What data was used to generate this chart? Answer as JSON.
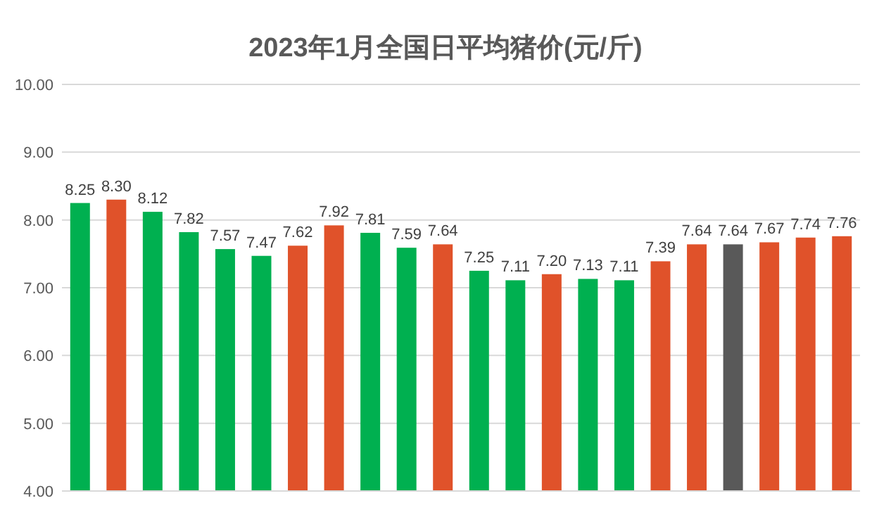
{
  "chart_data": {
    "type": "bar",
    "title": "2023年1月全国日平均猪价(元/斤)",
    "categories": [
      null,
      null,
      null,
      null,
      null,
      null,
      null,
      null,
      null,
      null,
      null,
      null,
      null,
      null,
      null,
      null,
      null,
      null,
      null,
      null,
      null,
      null
    ],
    "values": [
      8.25,
      8.3,
      8.12,
      7.82,
      7.57,
      7.47,
      7.62,
      7.92,
      7.81,
      7.59,
      7.64,
      7.25,
      7.11,
      7.2,
      7.13,
      7.11,
      7.39,
      7.64,
      7.64,
      7.67,
      7.74,
      7.76
    ],
    "colors": [
      "#00b050",
      "#e0522a",
      "#00b050",
      "#00b050",
      "#00b050",
      "#00b050",
      "#e0522a",
      "#e0522a",
      "#00b050",
      "#00b050",
      "#e0522a",
      "#00b050",
      "#00b050",
      "#e0522a",
      "#00b050",
      "#00b050",
      "#e0522a",
      "#e0522a",
      "#595959",
      "#e0522a",
      "#e0522a",
      "#e0522a"
    ],
    "ylim": [
      4,
      10
    ],
    "yticks": [
      {
        "value": 4,
        "label": "4.00"
      },
      {
        "value": 5,
        "label": "5.00"
      },
      {
        "value": 6,
        "label": "6.00"
      },
      {
        "value": 7,
        "label": "7.00"
      },
      {
        "value": 8,
        "label": "8.00"
      },
      {
        "value": 9,
        "label": "9.00"
      },
      {
        "value": 10,
        "label": "10.00"
      }
    ],
    "value_labels": [
      "8.25",
      "8.30",
      "8.12",
      "7.82",
      "7.57",
      "7.47",
      "7.62",
      "7.92",
      "7.81",
      "7.59",
      "7.64",
      "7.25",
      "7.11",
      "7.20",
      "7.13",
      "7.11",
      "7.39",
      "7.64",
      "7.64",
      "7.67",
      "7.74",
      "7.76"
    ],
    "grid": "y"
  }
}
